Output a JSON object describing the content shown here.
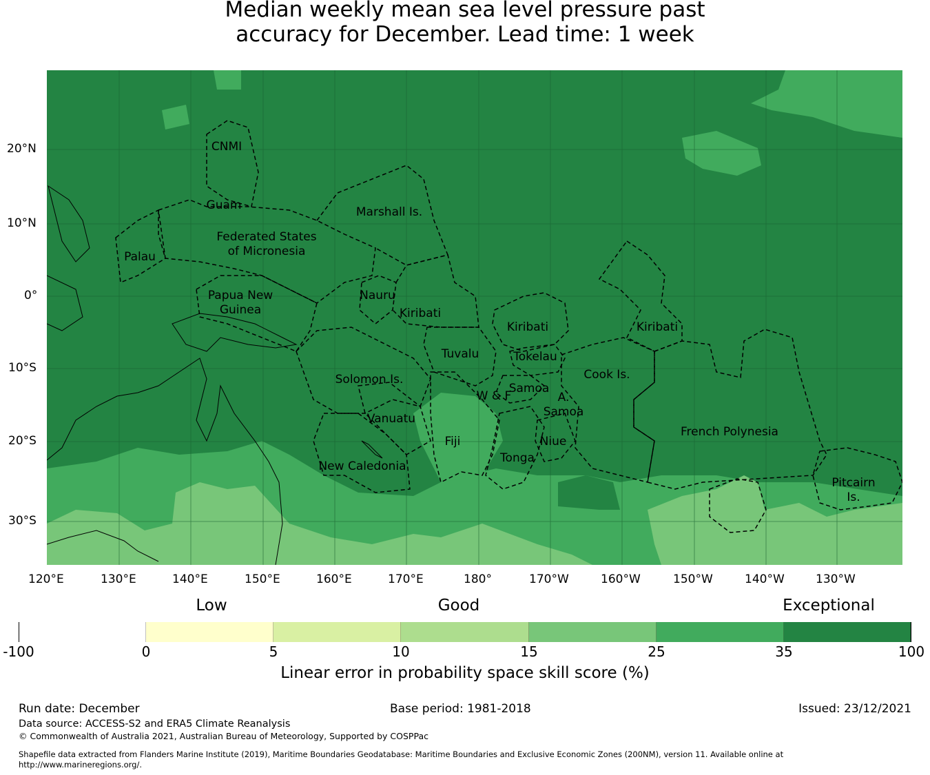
{
  "title": {
    "line1": "Median weekly mean sea level pressure past",
    "line2": "accuracy for December. Lead time: 1 week"
  },
  "map": {
    "lon_ticks": [
      "120°E",
      "130°E",
      "140°E",
      "150°E",
      "160°E",
      "170°E",
      "180°",
      "170°W",
      "160°W",
      "150°W",
      "140°W",
      "130°W"
    ],
    "lat_ticks": [
      "20°N",
      "10°N",
      "0°",
      "10°S",
      "20°S",
      "30°S"
    ],
    "regions": {
      "cnmi": "CNMI",
      "guam": "Guam",
      "marshall": "Marshall Is.",
      "fsm1": "Federated States",
      "fsm2": "of Micronesia",
      "palau": "Palau",
      "png1": "Papua New",
      "png2": "Guinea",
      "nauru": "Nauru",
      "kiribati": "Kiribati",
      "tuvalu": "Tuvalu",
      "tokelau": "Tokelau",
      "cook": "Cook Is.",
      "solomon": "Solomon Is.",
      "samoa": "Samoa",
      "wf": "W & F",
      "asamoa1": "A.",
      "asamoa2": "Samoa",
      "vanuatu": "Vanuatu",
      "frpoly": "French Polynesia",
      "fiji": "Fiji",
      "niue": "Niue",
      "tonga": "Tonga",
      "newcal": "New Caledonia",
      "pitcairn1": "Pitcairn",
      "pitcairn2": "Is."
    }
  },
  "colorbar": {
    "levels": [
      "Low",
      "Good",
      "Exceptional"
    ],
    "ticks": [
      "-100",
      "0",
      "5",
      "10",
      "15",
      "25",
      "35",
      "100"
    ],
    "colors": [
      "#ffffff",
      "#ffffcc",
      "#d9f0a3",
      "#addd8e",
      "#78c679",
      "#41ab5d",
      "#238443"
    ],
    "label": "Linear error in probability space skill score (%)"
  },
  "footer": {
    "run_date": "Run date: December",
    "base_period": "Base period: 1981-2018",
    "issued": "Issued: 23/12/2021",
    "source": "Data source: ACCESS-S2 and ERA5 Climate Reanalysis",
    "copyright": "© Commonwealth of Australia 2021, Australian Bureau of Meteorology, Supported by COSPPac",
    "shapefile1": "Shapefile data extracted from Flanders Marine Institute (2019), Maritime Boundaries Geodatabase: Maritime Boundaries and Exclusive Economic Zones (200NM), version 11. Available online at",
    "shapefile2": "http://www.marineregions.org/."
  }
}
